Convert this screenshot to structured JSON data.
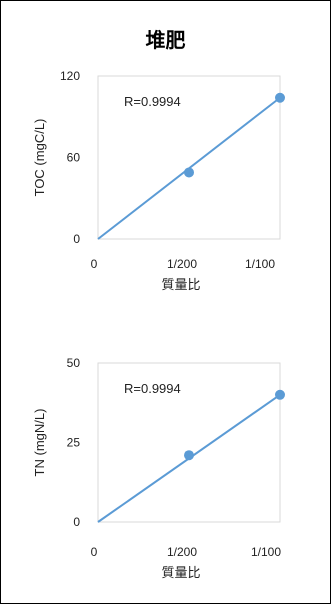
{
  "title": "堆肥",
  "chart_data": [
    {
      "type": "scatter",
      "x_tick_labels": [
        "0",
        "1/200",
        "1/100"
      ],
      "x_values": [
        0,
        0.005,
        0.01
      ],
      "xlabel": "質量比",
      "ylabel": "TOC (mgC/L)",
      "ylim": [
        0,
        120
      ],
      "y_ticks": [
        "0",
        "60",
        "120"
      ],
      "series": [
        {
          "points": [
            {
              "x": 0.005,
              "y": 49
            },
            {
              "x": 0.01,
              "y": 104
            }
          ],
          "trendline": [
            {
              "x": 0,
              "y": 0
            },
            {
              "x": 0.01,
              "y": 104
            }
          ]
        }
      ],
      "annotation": "R=0.9994",
      "colors": {
        "marker": "#5b9bd5",
        "line": "#5b9bd5"
      }
    },
    {
      "type": "scatter",
      "x_tick_labels": [
        "0",
        "1/200",
        "1/100"
      ],
      "x_values": [
        0,
        0.005,
        0.01
      ],
      "xlabel": "質量比",
      "ylabel": "TN (mgN/L)",
      "ylim": [
        0,
        50
      ],
      "y_ticks": [
        "0",
        "25",
        "50"
      ],
      "series": [
        {
          "points": [
            {
              "x": 0.005,
              "y": 21
            },
            {
              "x": 0.01,
              "y": 40
            }
          ],
          "trendline": [
            {
              "x": 0,
              "y": 0
            },
            {
              "x": 0.01,
              "y": 40
            }
          ]
        }
      ],
      "annotation": "R=0.9994",
      "colors": {
        "marker": "#5b9bd5",
        "line": "#5b9bd5"
      }
    }
  ]
}
